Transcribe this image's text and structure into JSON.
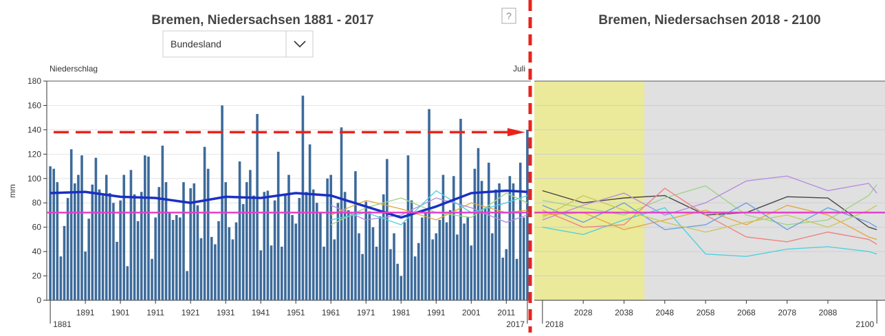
{
  "header": {
    "dropdown": "Bundesland",
    "help": "?"
  },
  "chart_data": [
    {
      "type": "bar",
      "title": "Bremen, Niedersachsen 1881 - 2017",
      "ylabel": "Niederschlag",
      "unit": "mm",
      "month": "Juli",
      "x": [
        1881,
        1882,
        1883,
        1884,
        1885,
        1886,
        1887,
        1888,
        1889,
        1890,
        1891,
        1892,
        1893,
        1894,
        1895,
        1896,
        1897,
        1898,
        1899,
        1900,
        1901,
        1902,
        1903,
        1904,
        1905,
        1906,
        1907,
        1908,
        1909,
        1910,
        1911,
        1912,
        1913,
        1914,
        1915,
        1916,
        1917,
        1918,
        1919,
        1920,
        1921,
        1922,
        1923,
        1924,
        1925,
        1926,
        1927,
        1928,
        1929,
        1930,
        1931,
        1932,
        1933,
        1934,
        1935,
        1936,
        1937,
        1938,
        1939,
        1940,
        1941,
        1942,
        1943,
        1944,
        1945,
        1946,
        1947,
        1948,
        1949,
        1950,
        1951,
        1952,
        1953,
        1954,
        1955,
        1956,
        1957,
        1958,
        1959,
        1960,
        1961,
        1962,
        1963,
        1964,
        1965,
        1966,
        1967,
        1968,
        1969,
        1970,
        1971,
        1972,
        1973,
        1974,
        1975,
        1976,
        1977,
        1978,
        1979,
        1980,
        1981,
        1982,
        1983,
        1984,
        1985,
        1986,
        1987,
        1988,
        1989,
        1990,
        1991,
        1992,
        1993,
        1994,
        1995,
        1996,
        1997,
        1998,
        1999,
        2000,
        2001,
        2002,
        2003,
        2004,
        2005,
        2006,
        2007,
        2008,
        2009,
        2010,
        2011,
        2012,
        2013,
        2014,
        2015,
        2016,
        2017
      ],
      "values": [
        110,
        108,
        97,
        36,
        61,
        84,
        124,
        96,
        103,
        119,
        40,
        67,
        95,
        117,
        91,
        86,
        103,
        88,
        80,
        48,
        82,
        103,
        28,
        107,
        87,
        65,
        89,
        119,
        118,
        34,
        68,
        93,
        127,
        97,
        72,
        66,
        70,
        68,
        97,
        24,
        92,
        96,
        78,
        51,
        126,
        108,
        52,
        46,
        65,
        160,
        97,
        60,
        50,
        64,
        114,
        79,
        97,
        107,
        86,
        153,
        41,
        89,
        90,
        45,
        82,
        122,
        44,
        87,
        103,
        70,
        63,
        84,
        168,
        89,
        128,
        91,
        80,
        72,
        44,
        100,
        103,
        50,
        80,
        142,
        89,
        74,
        71,
        106,
        55,
        38,
        81,
        73,
        60,
        44,
        69,
        87,
        116,
        42,
        55,
        30,
        20,
        64,
        119,
        82,
        36,
        47,
        68,
        72,
        157,
        50,
        55,
        66,
        103,
        64,
        74,
        102,
        54,
        149,
        63,
        68,
        45,
        108,
        125,
        98,
        76,
        113,
        55,
        91,
        96,
        35,
        42,
        102,
        96,
        34,
        113,
        68,
        140
      ],
      "color": "#3d6b9b",
      "mean": {
        "color": "#1a2fc4",
        "x": [
          1881,
          1891,
          1901,
          1911,
          1921,
          1931,
          1941,
          1951,
          1961,
          1971,
          1981,
          1991,
          2001,
          2011,
          2017
        ],
        "values": [
          88,
          89,
          85,
          84,
          80,
          85,
          84,
          88,
          86,
          77,
          68,
          77,
          88,
          90,
          89
        ]
      },
      "series": [
        {
          "color": "#e6a840",
          "x": [
            1961,
            1971,
            1981,
            1991,
            2001,
            2011,
            2017
          ],
          "values": [
            70,
            82,
            75,
            66,
            80,
            72,
            74
          ]
        },
        {
          "color": "#9fd48a",
          "x": [
            1961,
            1971,
            1981,
            1991,
            2001,
            2011,
            2017
          ],
          "values": [
            62,
            76,
            84,
            72,
            68,
            88,
            80
          ]
        },
        {
          "color": "#b58ee0",
          "x": [
            1961,
            1971,
            1981,
            1991,
            2001,
            2011,
            2017
          ],
          "values": [
            78,
            66,
            70,
            84,
            76,
            64,
            70
          ]
        },
        {
          "color": "#4fd0e0",
          "x": [
            1961,
            1971,
            1981,
            1991,
            2001,
            2011,
            2017
          ],
          "values": [
            66,
            72,
            62,
            90,
            72,
            80,
            86
          ]
        }
      ],
      "reference": {
        "value": 72,
        "color": "#e040c8"
      },
      "threshold": {
        "value": 138,
        "color": "#e8241c"
      },
      "xlim": [
        1880,
        2018
      ],
      "xticks": [
        1891,
        1901,
        1911,
        1921,
        1931,
        1941,
        1951,
        1961,
        1971,
        1981,
        1991,
        2001,
        2011
      ],
      "xends": [
        1881,
        2017
      ],
      "ylim": [
        0,
        180
      ],
      "yticks": [
        0,
        20,
        40,
        60,
        80,
        100,
        120,
        140,
        160,
        180
      ],
      "grid": true
    },
    {
      "type": "line",
      "title": "Bremen, Niedersachsen 2018 - 2100",
      "band": {
        "x": [
          2016,
          2043
        ],
        "color": "#eaea9a"
      },
      "series": [
        {
          "color": "#444444",
          "x": [
            2018,
            2028,
            2038,
            2048,
            2058,
            2068,
            2078,
            2088,
            2098,
            2100
          ],
          "values": [
            90,
            80,
            84,
            86,
            70,
            72,
            85,
            84,
            60,
            58
          ]
        },
        {
          "color": "#9fd48a",
          "x": [
            2018,
            2028,
            2038,
            2048,
            2058,
            2068,
            2078,
            2088,
            2098,
            2100
          ],
          "values": [
            82,
            76,
            70,
            84,
            94,
            70,
            62,
            66,
            86,
            95
          ]
        },
        {
          "color": "#b58ee0",
          "x": [
            2018,
            2028,
            2038,
            2048,
            2058,
            2068,
            2078,
            2088,
            2098,
            2100
          ],
          "values": [
            66,
            78,
            88,
            70,
            80,
            98,
            102,
            90,
            96,
            88
          ]
        },
        {
          "color": "#4fd0e0",
          "x": [
            2018,
            2028,
            2038,
            2048,
            2058,
            2068,
            2078,
            2088,
            2098,
            2100
          ],
          "values": [
            60,
            54,
            66,
            76,
            38,
            36,
            42,
            44,
            40,
            38
          ]
        },
        {
          "color": "#f08080",
          "x": [
            2018,
            2028,
            2038,
            2048,
            2058,
            2068,
            2078,
            2088,
            2098,
            2100
          ],
          "values": [
            74,
            60,
            62,
            92,
            70,
            52,
            48,
            56,
            50,
            46
          ]
        },
        {
          "color": "#e6a840",
          "x": [
            2018,
            2028,
            2038,
            2048,
            2058,
            2068,
            2078,
            2088,
            2098,
            2100
          ],
          "values": [
            70,
            72,
            58,
            66,
            74,
            62,
            78,
            70,
            52,
            50
          ]
        },
        {
          "color": "#6aa0e0",
          "x": [
            2018,
            2028,
            2038,
            2048,
            2058,
            2068,
            2078,
            2088,
            2098,
            2100
          ],
          "values": [
            78,
            64,
            80,
            58,
            62,
            80,
            58,
            76,
            64,
            60
          ]
        },
        {
          "color": "#c8c860",
          "x": [
            2018,
            2028,
            2038,
            2048,
            2058,
            2068,
            2078,
            2088,
            2098,
            2100
          ],
          "values": [
            68,
            86,
            74,
            64,
            56,
            64,
            70,
            60,
            74,
            78
          ]
        }
      ],
      "reference": {
        "value": 72,
        "color": "#e040c8"
      },
      "xlim": [
        2016,
        2102
      ],
      "xticks": [
        2028,
        2038,
        2048,
        2058,
        2068,
        2078,
        2088
      ],
      "xends": [
        2018,
        2100
      ],
      "ylim": [
        0,
        180
      ],
      "yticks": [
        0,
        20,
        40,
        60,
        80,
        100,
        120,
        140,
        160,
        180
      ],
      "grid": true
    }
  ]
}
